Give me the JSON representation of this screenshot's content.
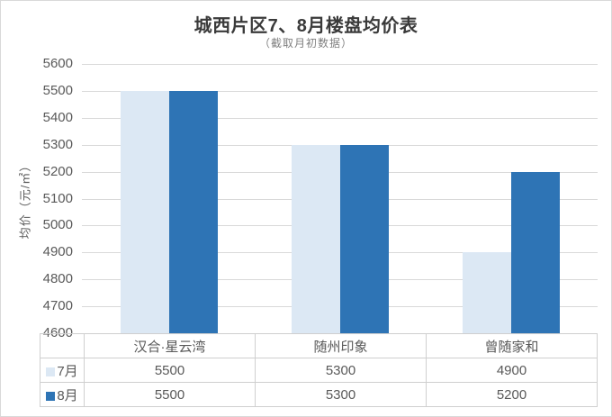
{
  "title": "城西片区7、8月楼盘均价表",
  "subtitle": "（截取月初数据）",
  "chart_data": {
    "type": "bar",
    "title": "城西片区7、8月楼盘均价表",
    "subtitle": "（截取月初数据）",
    "xlabel": "",
    "ylabel": "均价（元/㎡）",
    "ylim": [
      4600,
      5600
    ],
    "ytick_step": 100,
    "grid": true,
    "legend_position": "data-table-left",
    "categories": [
      "汉合·星云湾",
      "随州印象",
      "曾随家和"
    ],
    "series": [
      {
        "name": "7月",
        "color": "#dce8f4",
        "values": [
          5500,
          5300,
          4900
        ]
      },
      {
        "name": "8月",
        "color": "#2e74b5",
        "values": [
          5500,
          5300,
          5200
        ]
      }
    ]
  },
  "colors": {
    "gridline": "#d9d9d9",
    "table_border": "#cfcfcf",
    "text_gray": "#595959",
    "title_color": "#3a3a3a",
    "subtitle_color": "#7f7f7f",
    "series_light": "#dce8f4",
    "series_dark": "#2e74b5"
  }
}
